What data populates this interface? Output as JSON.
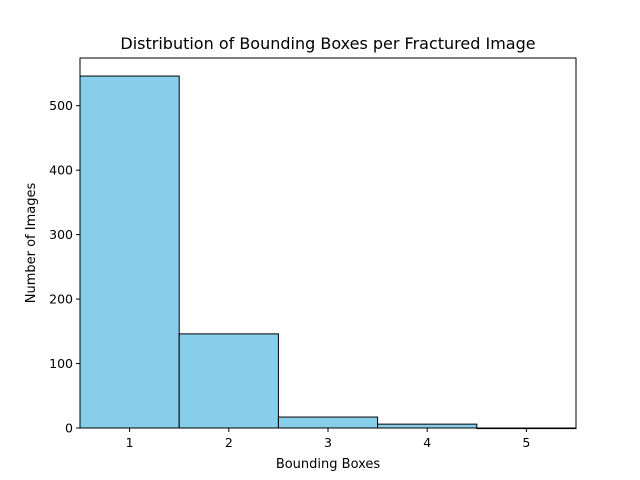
{
  "chart_data": {
    "type": "bar",
    "title": "Distribution of Bounding Boxes per Fractured Image",
    "xlabel": "Bounding Boxes",
    "ylabel": "Number of Images",
    "categories": [
      1,
      2,
      3,
      4,
      5
    ],
    "values": [
      546,
      146,
      17,
      6,
      0
    ],
    "xlim": [
      0.5,
      5.5
    ],
    "ylim": [
      0,
      574
    ],
    "xticks": [
      1,
      2,
      3,
      4,
      5
    ],
    "yticks": [
      0,
      100,
      200,
      300,
      400,
      500
    ],
    "grid": false,
    "colors": {
      "bar_fill": "#87ceeb",
      "bar_edge": "#000000",
      "axes": "#000000"
    }
  }
}
